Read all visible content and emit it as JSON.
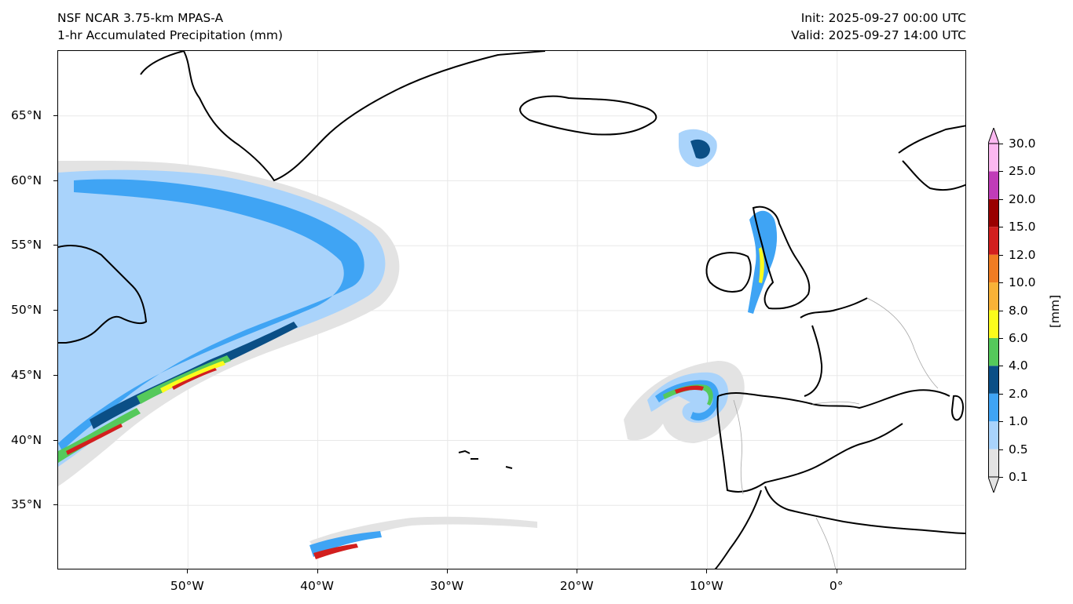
{
  "header": {
    "model": "NSF NCAR 3.75-km MPAS-A",
    "field": "1-hr Accumulated Precipitation (mm)",
    "init": "Init: 2025-09-27 00:00 UTC",
    "valid": "Valid: 2025-09-27 14:00 UTC"
  },
  "map": {
    "lon_min": -60,
    "lon_max": 10,
    "lat_min": 30,
    "lat_max": 70,
    "projection": "plate-carree",
    "gridlines": true,
    "x_ticks": [
      {
        "lon": -50,
        "label": "50°W"
      },
      {
        "lon": -40,
        "label": "40°W"
      },
      {
        "lon": -30,
        "label": "30°W"
      },
      {
        "lon": -20,
        "label": "20°W"
      },
      {
        "lon": -10,
        "label": "10°W"
      },
      {
        "lon": 0,
        "label": "0°"
      }
    ],
    "y_ticks": [
      {
        "lat": 65,
        "label": "65°N"
      },
      {
        "lat": 60,
        "label": "60°N"
      },
      {
        "lat": 55,
        "label": "55°N"
      },
      {
        "lat": 50,
        "label": "50°N"
      },
      {
        "lat": 45,
        "label": "45°N"
      },
      {
        "lat": 40,
        "label": "40°N"
      },
      {
        "lat": 35,
        "label": "35°N"
      }
    ]
  },
  "colorbar": {
    "unit": "[mm]",
    "levels": [
      "0.1",
      "0.5",
      "1.0",
      "2.0",
      "4.0",
      "6.0",
      "8.0",
      "10.0",
      "12.0",
      "15.0",
      "20.0",
      "25.0",
      "30.0"
    ],
    "colors": [
      "#e3e3e3",
      "#a9d3fb",
      "#3fa4f4",
      "#0b4f86",
      "#55c95b",
      "#fbfc1c",
      "#f9b237",
      "#f07c22",
      "#d21f1e",
      "#990000",
      "#c03cb8",
      "#fbb8f0"
    ],
    "extend": "both"
  },
  "colors": {
    "coast": "#000000",
    "border": "#a6a6a6",
    "gridline": "#e8e8e8"
  }
}
